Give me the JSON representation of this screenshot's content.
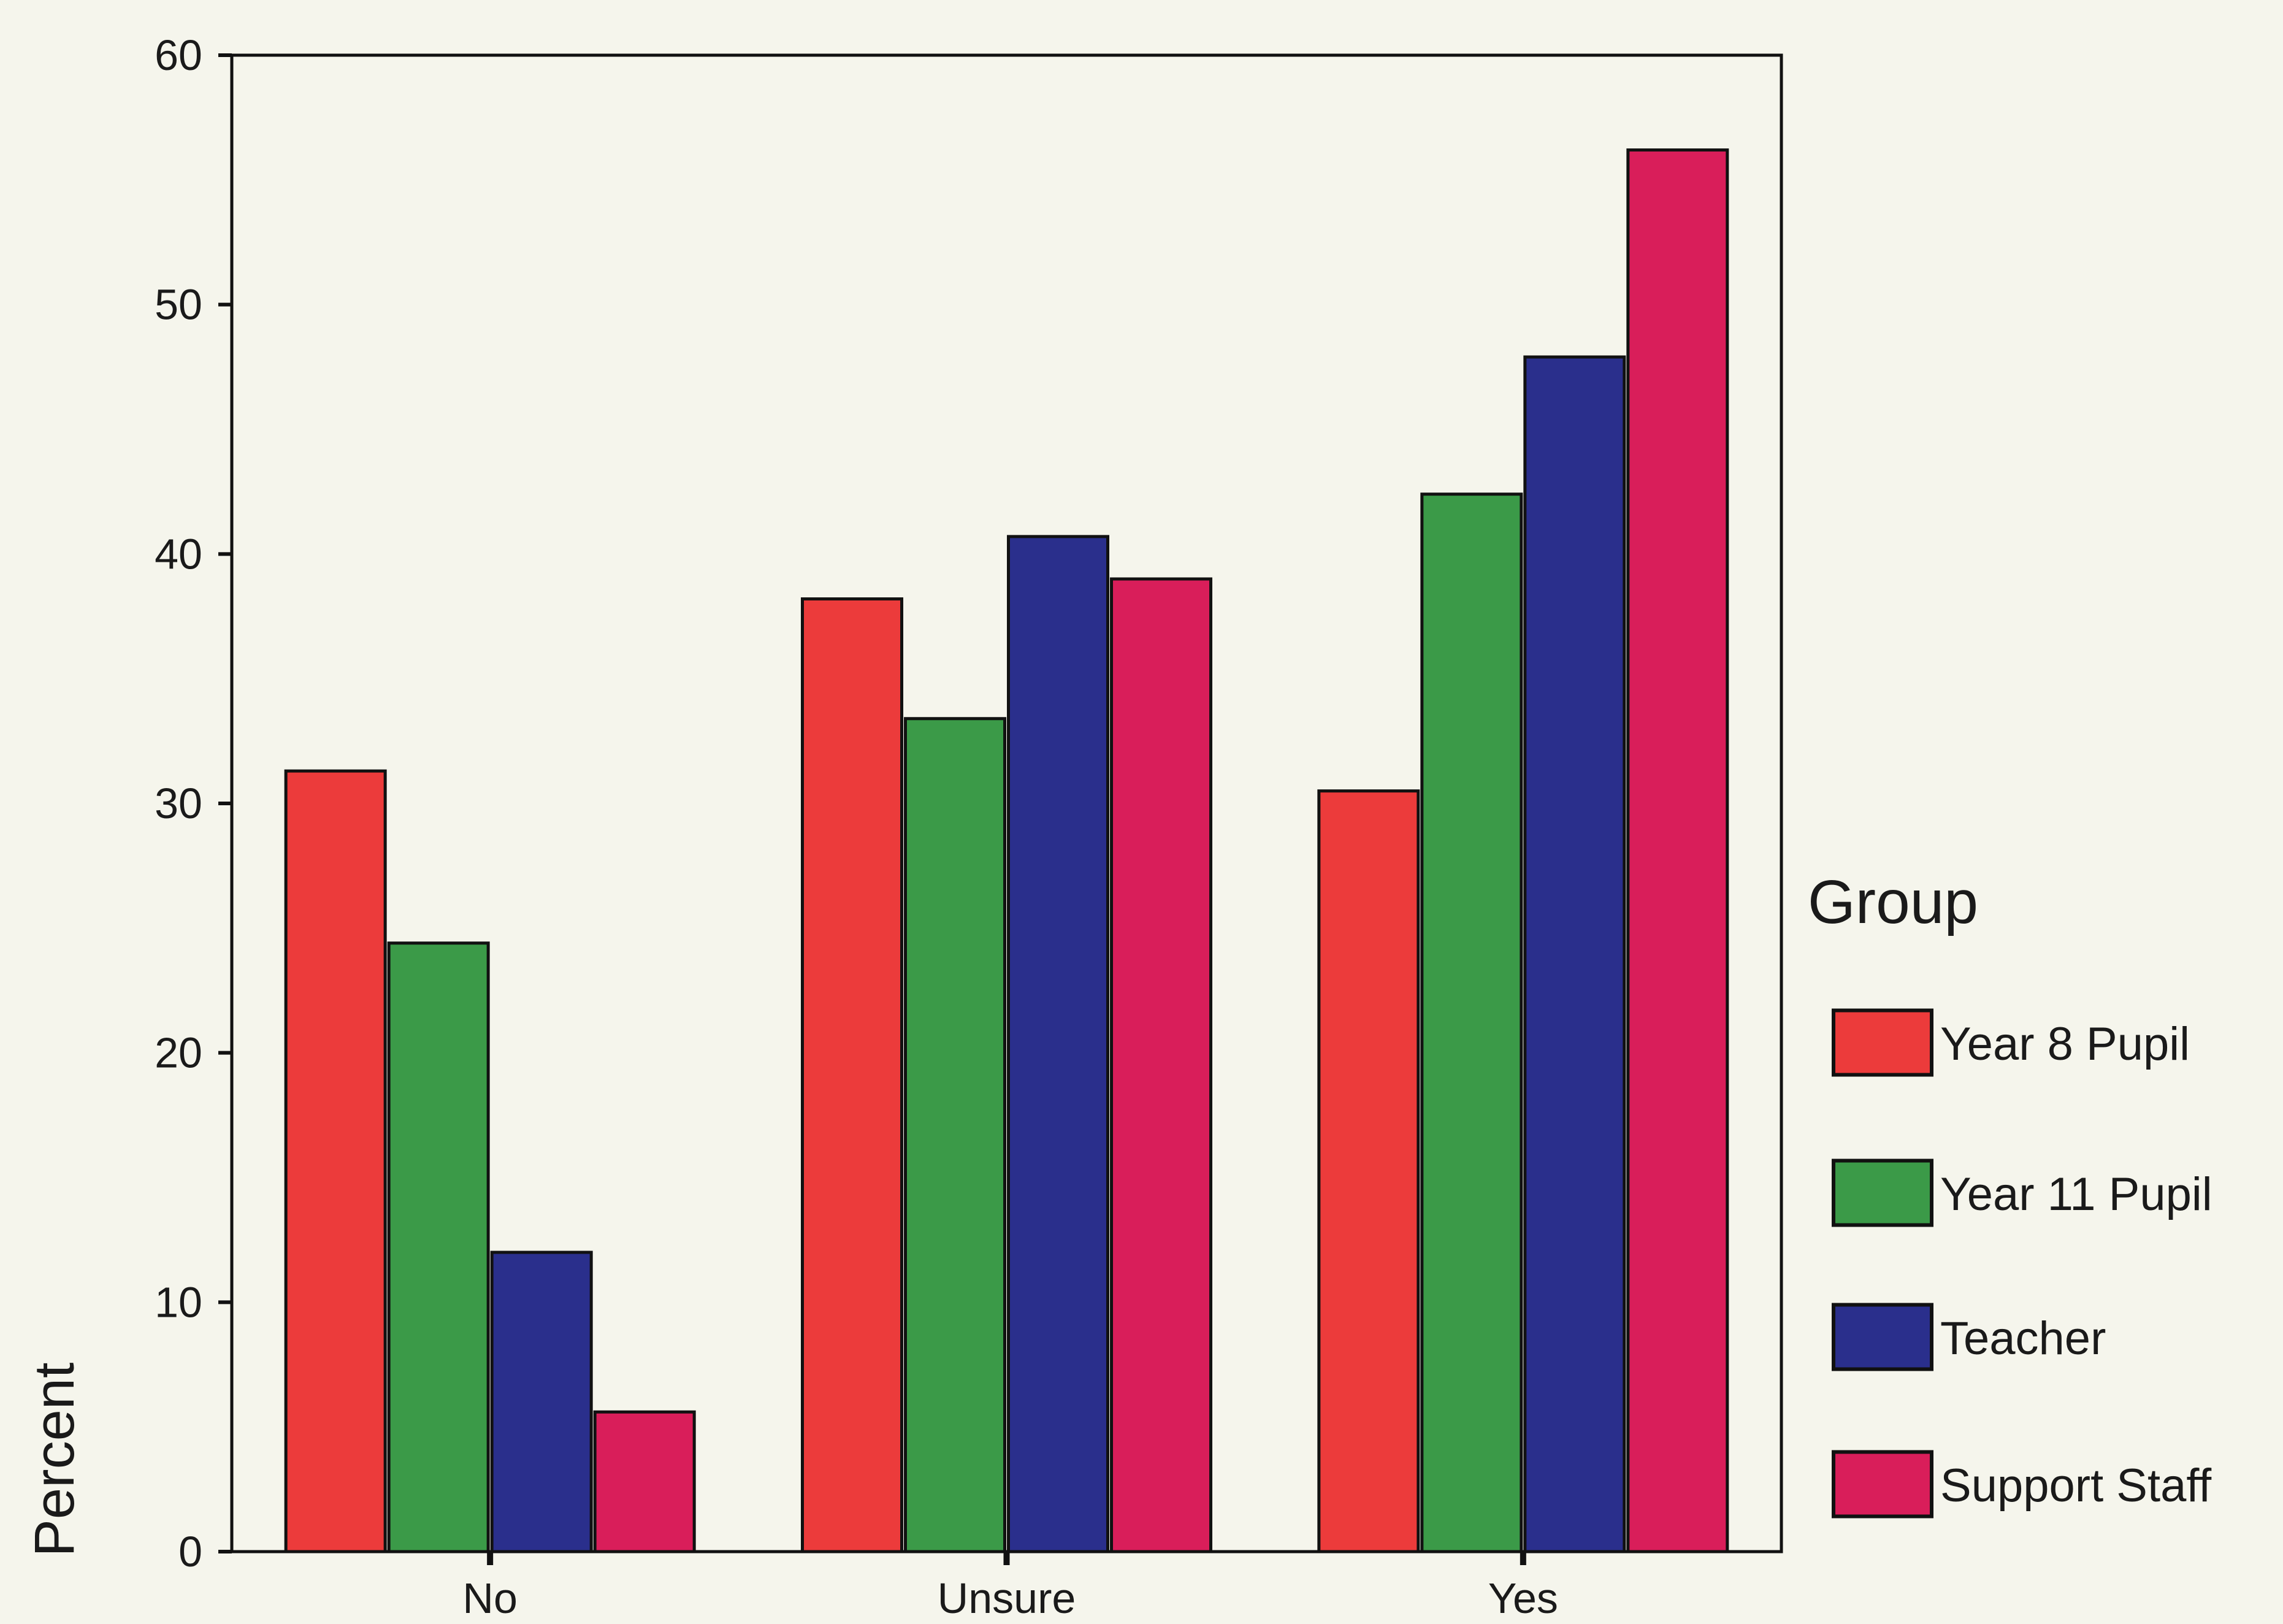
{
  "chart_data": {
    "type": "bar",
    "title": "",
    "xlabel": "",
    "ylabel": "Percent",
    "ylim": [
      0,
      60
    ],
    "yticks": [
      0,
      10,
      20,
      30,
      40,
      50,
      60
    ],
    "categories": [
      "No",
      "Unsure",
      "Yes"
    ],
    "grid": false,
    "legend": {
      "title": "Group",
      "placement": "right"
    },
    "series": [
      {
        "name": "Year 8 Pupil",
        "color": "#ec3b3b",
        "values": [
          31.3,
          38.2,
          30.5
        ]
      },
      {
        "name": "Year 11 Pupil",
        "color": "#3b9a48",
        "values": [
          24.4,
          33.4,
          42.4
        ]
      },
      {
        "name": "Teacher",
        "color": "#2a2f8c",
        "values": [
          12.0,
          40.7,
          47.9
        ]
      },
      {
        "name": "Support Staff",
        "color": "#d91e5a",
        "values": [
          5.6,
          39.0,
          56.2
        ]
      }
    ]
  }
}
